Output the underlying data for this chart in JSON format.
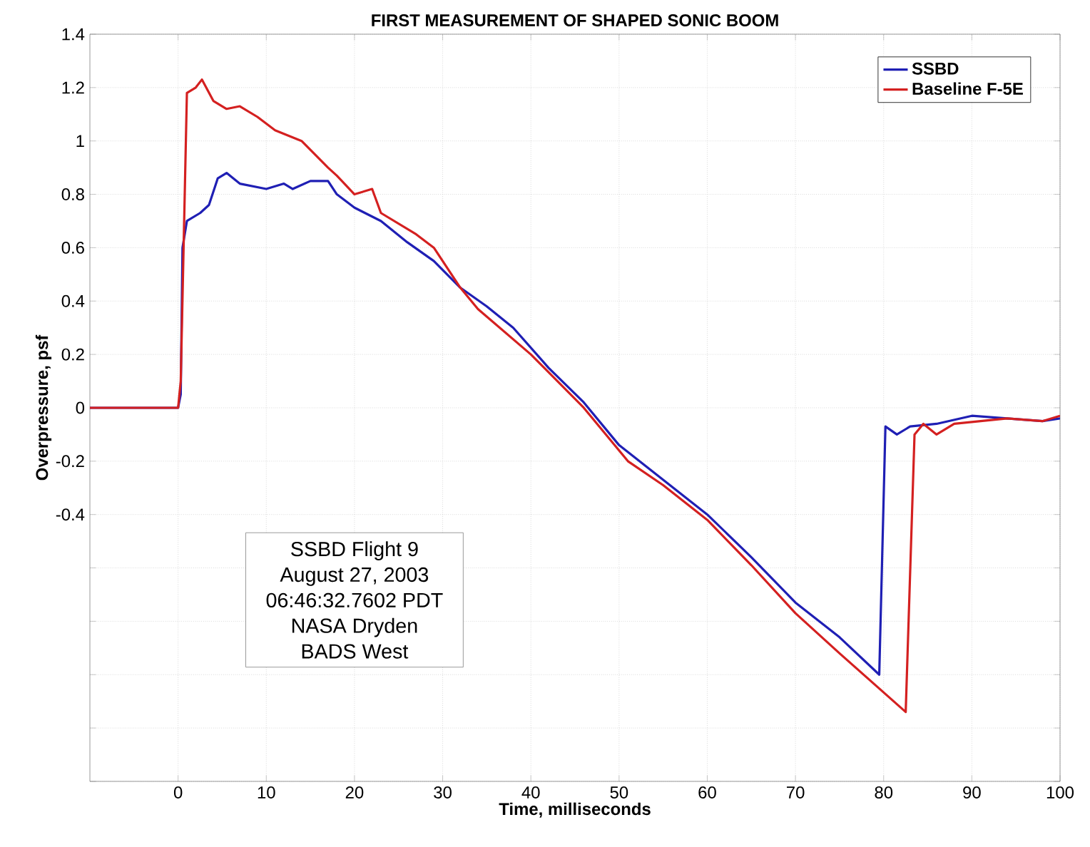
{
  "chart_data": {
    "type": "line",
    "title": "FIRST MEASUREMENT OF SHAPED SONIC BOOM",
    "xlabel": "Time, milliseconds",
    "ylabel": "Overpressure, psf",
    "annotations": [
      "SSBD Flight 9",
      "August 27, 2003",
      "06:46:32.7602 PDT",
      "NASA Dryden",
      "BADS West"
    ],
    "xlim": [
      -10,
      100
    ],
    "ylim": [
      -1.4,
      1.4
    ],
    "xticks": [
      0,
      10,
      20,
      30,
      40,
      50,
      60,
      70,
      80,
      90,
      100
    ],
    "yticks": [
      {
        "value": -1.4,
        "label": null
      },
      {
        "value": -1.2,
        "label": null
      },
      {
        "value": -1,
        "label": null
      },
      {
        "value": -0.8,
        "label": null
      },
      {
        "value": -0.6,
        "label": null
      },
      -0.4,
      -0.2,
      0,
      0.2,
      0.4,
      0.6,
      0.8,
      1,
      1.2,
      1.4
    ],
    "grid": true,
    "legend": "top right",
    "line_style": "solid",
    "marker": "none",
    "series": [
      {
        "name": "SSBD",
        "color": "#1f1fb4",
        "x": [
          -10,
          -5,
          0,
          0.3,
          0.5,
          1,
          2.5,
          3.5,
          4.5,
          5.5,
          7,
          10,
          12,
          13,
          15,
          17,
          18,
          20,
          23,
          26,
          29,
          32,
          35,
          38,
          42,
          46,
          50,
          55,
          60,
          65,
          70,
          75,
          79.5,
          80.2,
          81.5,
          83,
          86,
          90,
          94,
          98,
          100
        ],
        "values": [
          0,
          0,
          0,
          0.05,
          0.6,
          0.7,
          0.73,
          0.76,
          0.86,
          0.88,
          0.84,
          0.82,
          0.84,
          0.82,
          0.85,
          0.85,
          0.8,
          0.75,
          0.7,
          0.62,
          0.55,
          0.45,
          0.38,
          0.3,
          0.15,
          0.02,
          -0.14,
          -0.27,
          -0.4,
          -0.56,
          -0.73,
          -0.86,
          -1.0,
          -0.07,
          -0.1,
          -0.07,
          -0.06,
          -0.03,
          -0.04,
          -0.05,
          -0.04
        ]
      },
      {
        "name": "Baseline F-5E",
        "color": "#d42020",
        "x": [
          -10,
          -5,
          0,
          0.3,
          1,
          2,
          2.7,
          4,
          5.5,
          7,
          9,
          11,
          14,
          17,
          18,
          20,
          22,
          23,
          27,
          29,
          32,
          34,
          40,
          46,
          51,
          55,
          60,
          65,
          70,
          75,
          82.5,
          83.5,
          84.5,
          86,
          88,
          91,
          94,
          98,
          100
        ],
        "values": [
          0,
          0,
          0,
          0.1,
          1.18,
          1.2,
          1.23,
          1.15,
          1.12,
          1.13,
          1.09,
          1.04,
          1.0,
          0.9,
          0.87,
          0.8,
          0.82,
          0.73,
          0.65,
          0.6,
          0.45,
          0.37,
          0.2,
          0.0,
          -0.2,
          -0.29,
          -0.42,
          -0.59,
          -0.77,
          -0.92,
          -1.14,
          -0.1,
          -0.06,
          -0.1,
          -0.06,
          -0.05,
          -0.04,
          -0.05,
          -0.03
        ]
      }
    ]
  }
}
